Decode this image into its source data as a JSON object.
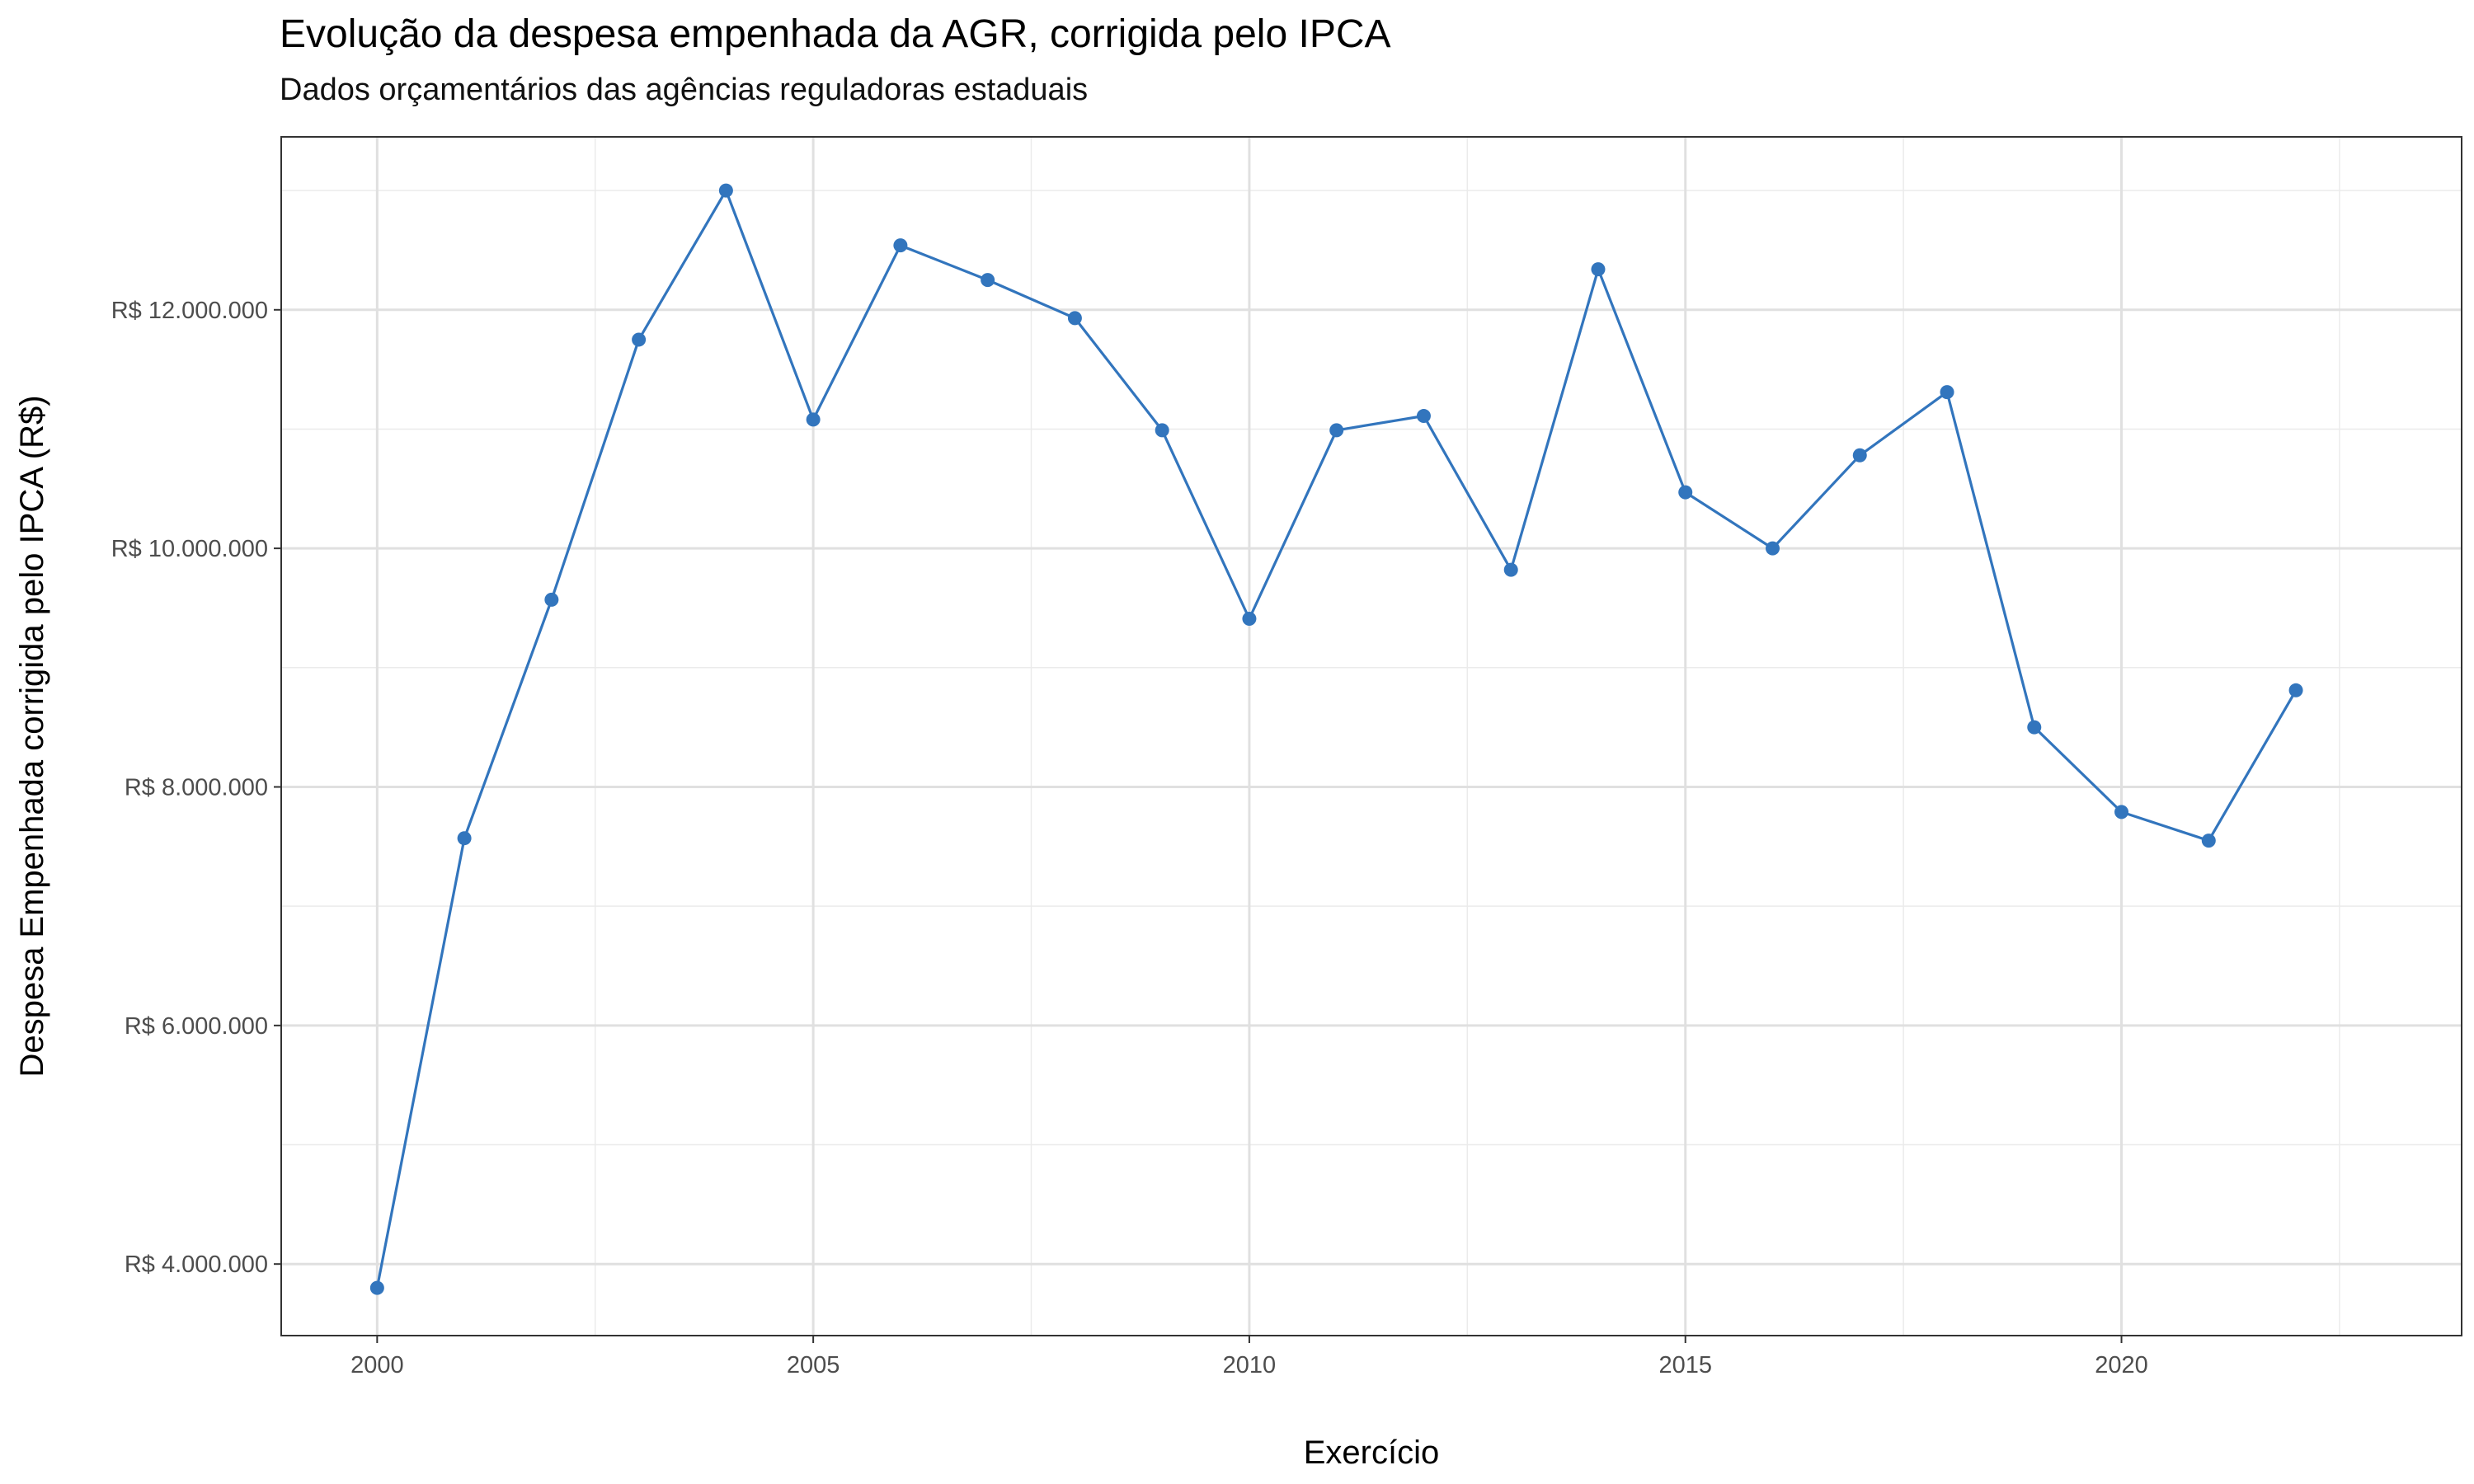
{
  "chart_data": {
    "type": "line",
    "title": "Evolução da despesa empenhada da AGR, corrigida pelo IPCA",
    "subtitle": "Dados orçamentários das agências reguladoras estaduais",
    "xlabel": "Exercício",
    "ylabel": "Despesa Empenhada corrigida pelo IPCA (R$)",
    "xlim": [
      1998.9,
      2023.9
    ],
    "ylim": [
      3400000,
      13450000
    ],
    "x_ticks": [
      2000,
      2005,
      2010,
      2015,
      2020
    ],
    "x_tick_labels": [
      "2000",
      "2005",
      "2010",
      "2015",
      "2020"
    ],
    "y_ticks": [
      4000000,
      6000000,
      8000000,
      10000000,
      12000000
    ],
    "y_tick_labels": [
      "R$ 4.000.000",
      "R$ 6.000.000",
      "R$ 8.000.000",
      "R$ 10.000.000",
      "R$ 12.000.000"
    ],
    "grid": true,
    "legend": "none",
    "series_color": "#3275BD",
    "x": [
      2000,
      2001,
      2002,
      2003,
      2004,
      2005,
      2006,
      2007,
      2008,
      2009,
      2010,
      2011,
      2012,
      2013,
      2014,
      2015,
      2016,
      2017,
      2018,
      2019,
      2020,
      2021,
      2022
    ],
    "values": [
      3800000,
      7570000,
      9570000,
      11750000,
      13000000,
      11080000,
      12540000,
      12250000,
      11930000,
      10990000,
      9410000,
      10990000,
      11110000,
      9820000,
      12340000,
      10470000,
      10000000,
      10780000,
      11310000,
      8500000,
      7790000,
      7550000,
      8810000
    ]
  }
}
